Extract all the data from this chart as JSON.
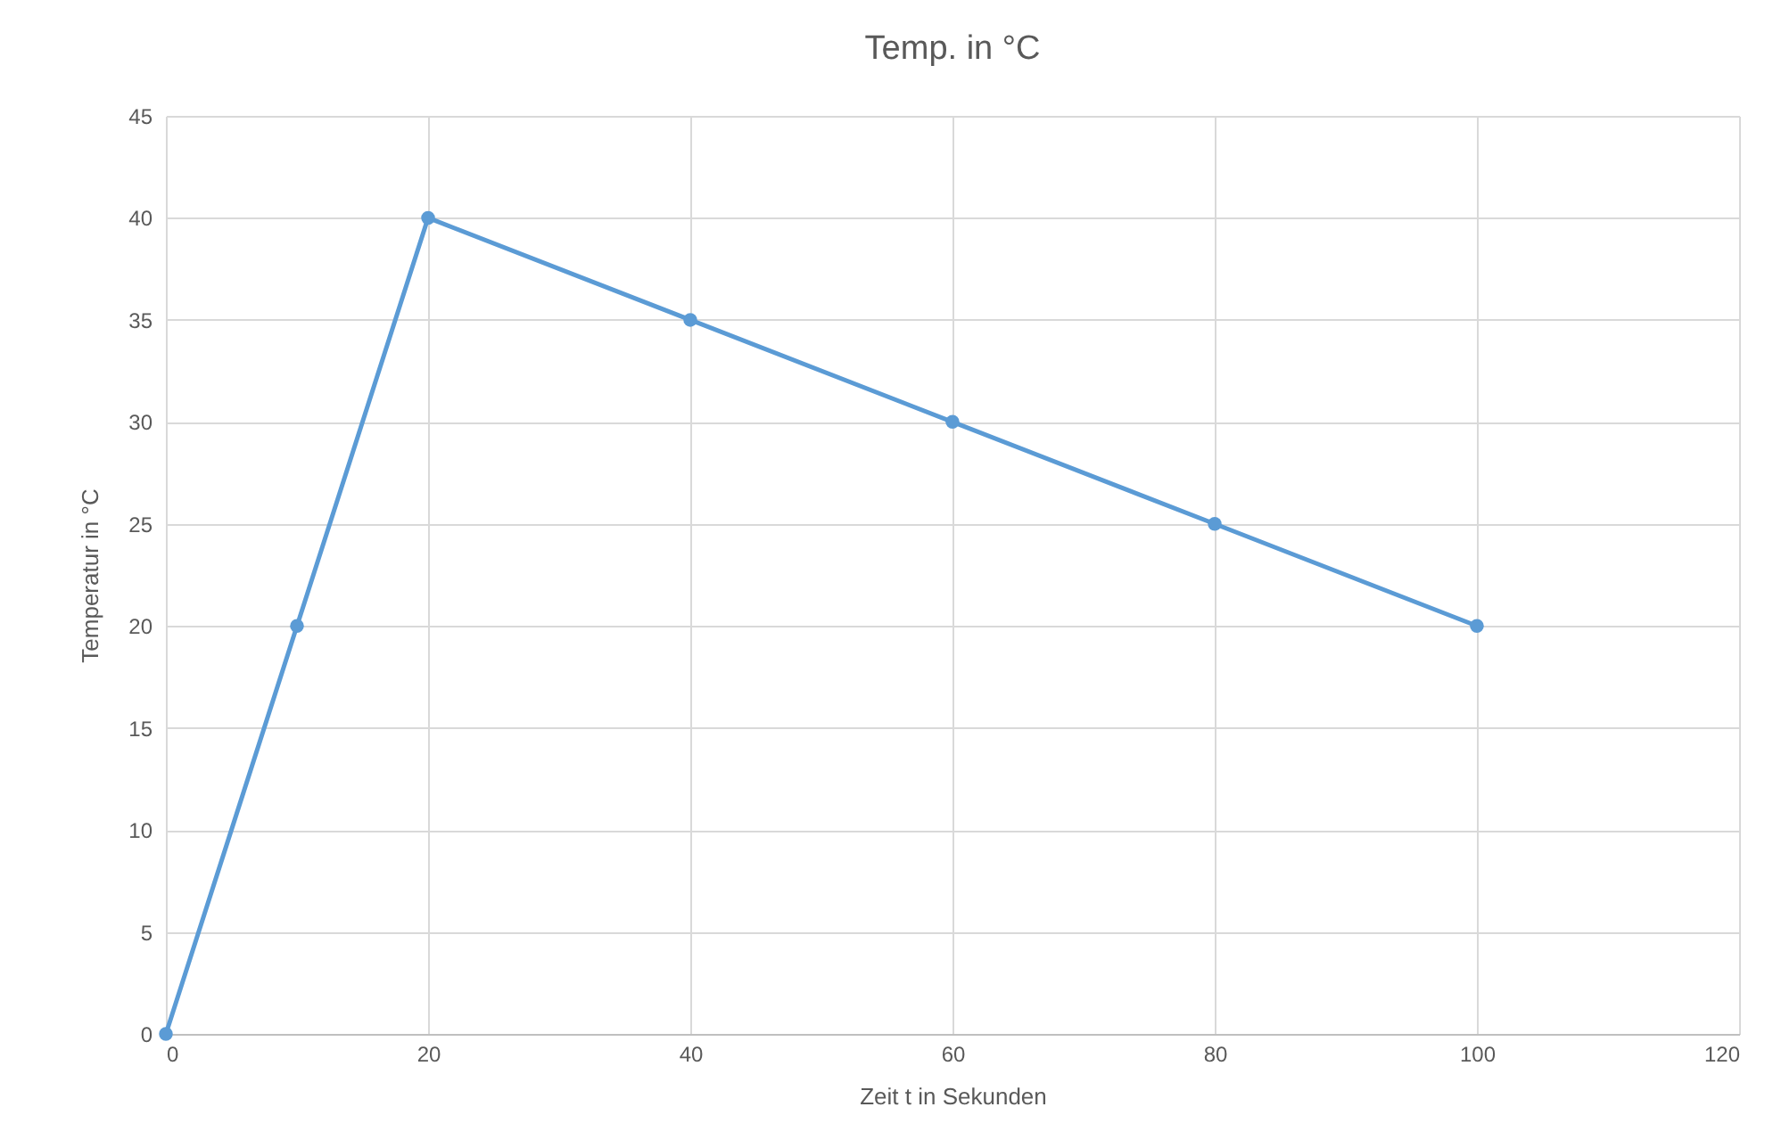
{
  "chart_data": {
    "type": "line",
    "title": "Temp. in °C",
    "xlabel": "Zeit t in Sekunden",
    "ylabel": "Temperatur in °C",
    "x": [
      0,
      10,
      20,
      40,
      60,
      80,
      100
    ],
    "series": [
      {
        "color": "#5b9bd5",
        "values": [
          0,
          20,
          40,
          35,
          30,
          25,
          20
        ]
      }
    ],
    "xlim": [
      0,
      120
    ],
    "xticks": [
      0,
      20,
      40,
      60,
      80,
      100,
      120
    ],
    "ylim": [
      0,
      45
    ],
    "yticks": [
      0,
      5,
      10,
      15,
      20,
      25,
      30,
      35,
      40,
      45
    ],
    "grid": true,
    "marker": "circle",
    "line_style": "solid"
  }
}
